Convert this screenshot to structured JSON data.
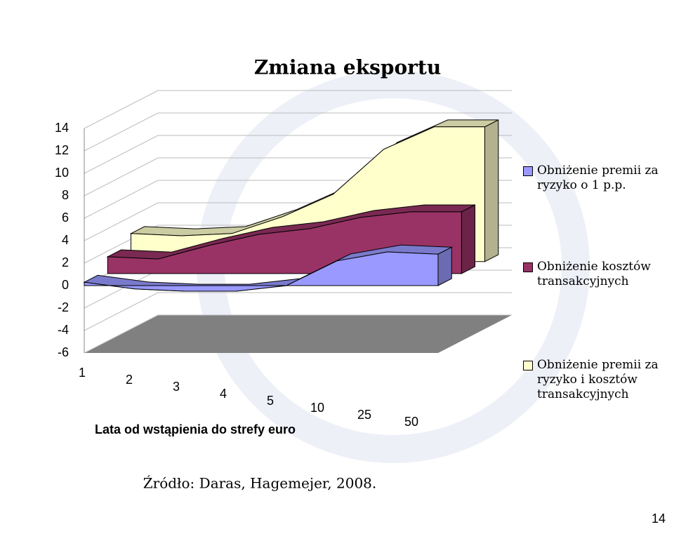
{
  "chart_data": {
    "type": "area3d",
    "title": "Zmiana eksportu",
    "x_label": "Lata od wstąpienia do strefy euro",
    "categories": [
      "1",
      "2",
      "3",
      "4",
      "5",
      "10",
      "25",
      "50"
    ],
    "series": [
      {
        "name": "Obniżenie premii za ryzyko o 1 p.p.",
        "color": "#9999ff",
        "values": [
          0.3,
          -0.3,
          -0.5,
          -0.5,
          0,
          2.2,
          3,
          2.8
        ]
      },
      {
        "name": "Obniżenie kosztów transakcyjnych",
        "color": "#993366",
        "values": [
          1.5,
          1.3,
          2.5,
          3.5,
          4,
          5,
          5.5,
          5.5
        ]
      },
      {
        "name": "Obniżenie premii za ryzyko i kosztów transakcyjnych",
        "color": "#ffffcc",
        "values": [
          2.5,
          2.3,
          2.5,
          4,
          6,
          10,
          12,
          12
        ]
      }
    ],
    "ylim": [
      -6,
      14
    ],
    "yticks": [
      -6,
      -4,
      -2,
      0,
      2,
      4,
      6,
      8,
      10,
      12,
      14
    ],
    "grid": true,
    "source": "Źródło: Daras, Hagemejer, 2008.",
    "page_number": "14"
  }
}
